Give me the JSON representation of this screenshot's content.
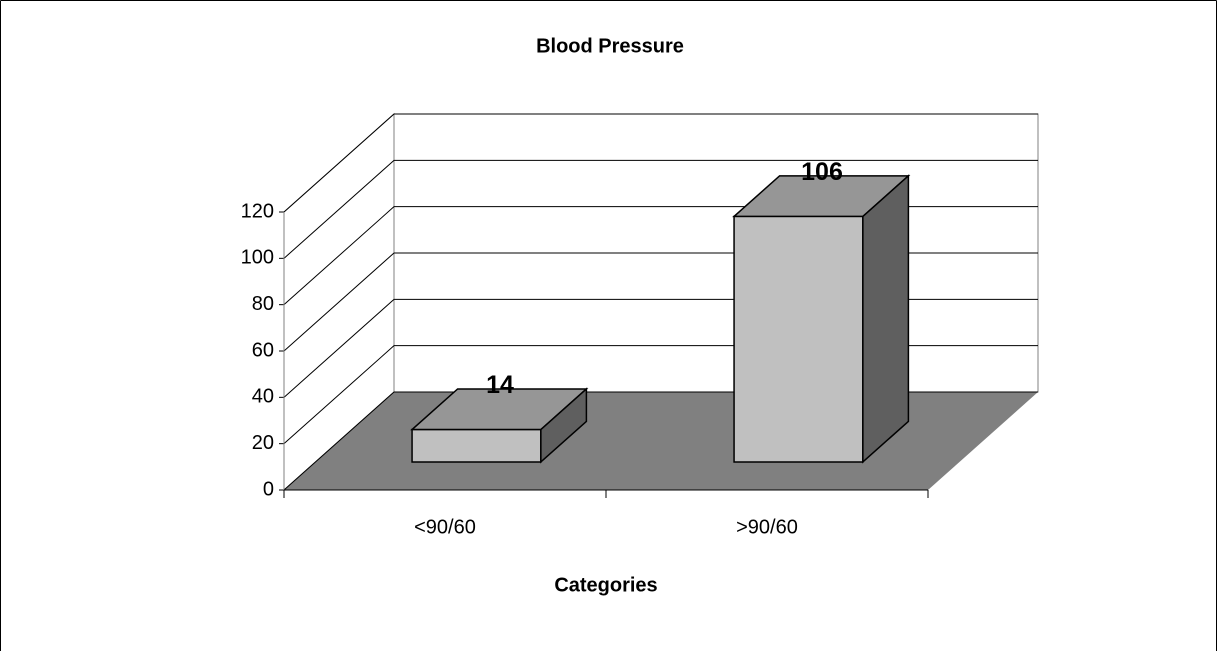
{
  "chart_data": {
    "type": "bar3d",
    "title": "Blood Pressure",
    "x_label": "Categories",
    "categories": [
      "<90/60",
      ">90/60"
    ],
    "values": [
      14,
      106
    ],
    "ylim": [
      0,
      120
    ],
    "yticks": [
      0,
      20,
      40,
      60,
      80,
      100,
      120
    ],
    "grid": true,
    "colors": {
      "front": "#c0c0c0",
      "top": "#969696",
      "side": "#5f5f5f",
      "floor": "#808080"
    }
  }
}
